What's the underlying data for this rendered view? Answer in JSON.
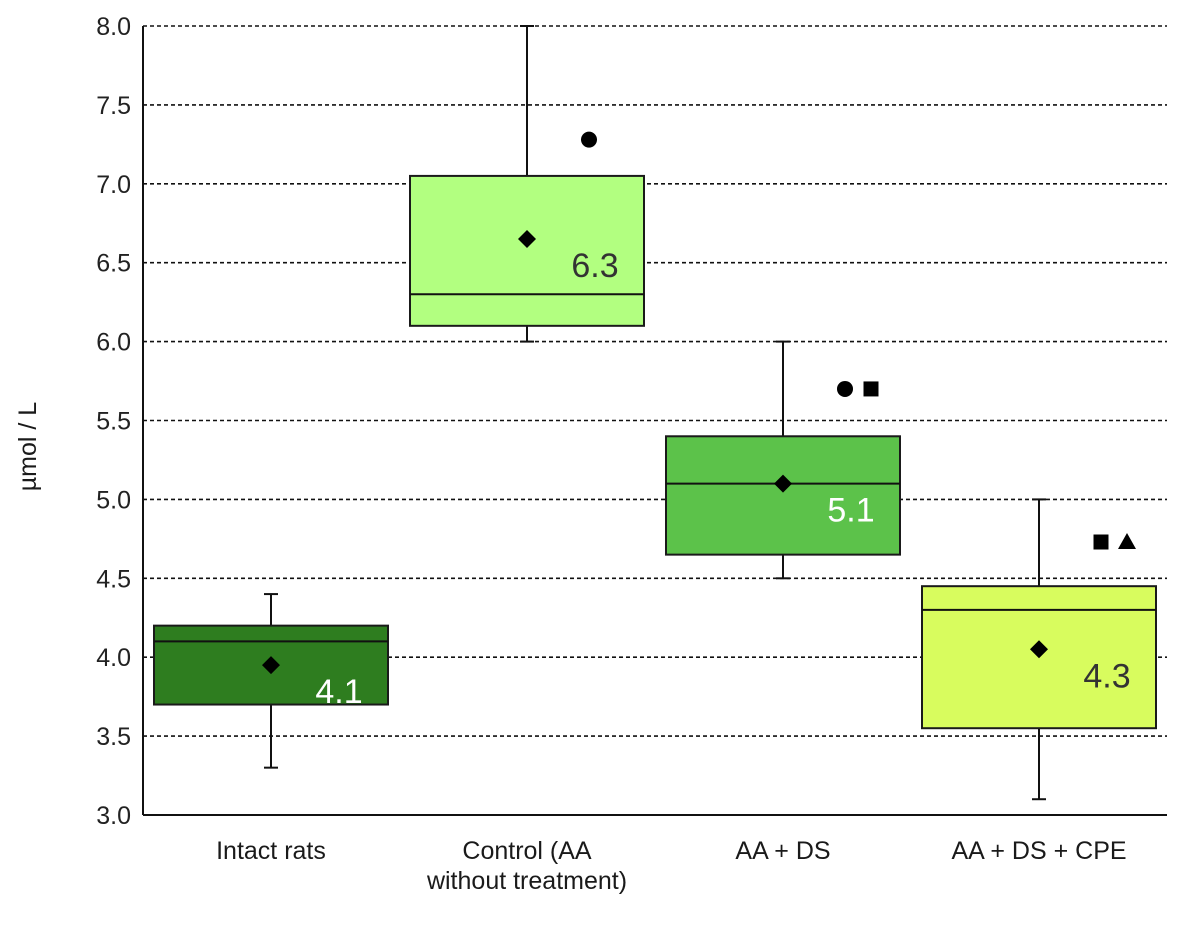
{
  "chart_data": {
    "type": "box",
    "title": "",
    "xlabel": "",
    "ylabel": "µmol / L",
    "ylim": [
      3.0,
      8.0
    ],
    "yticks": [
      "3.0",
      "3.5",
      "4.0",
      "4.5",
      "5.0",
      "5.5",
      "6.0",
      "6.5",
      "7.0",
      "7.5",
      "8.0"
    ],
    "grid": "horizontal dashed",
    "groups": [
      {
        "label_lines": [
          "Intact rats"
        ],
        "min": 3.3,
        "q1": 3.7,
        "median": 4.1,
        "q3": 4.2,
        "max": 4.4,
        "mean": 3.95,
        "median_label": "4.1",
        "color": "#2e7d1f",
        "label_color": "#ffffff",
        "markers": []
      },
      {
        "label_lines": [
          "Control (AA",
          "without treatment)"
        ],
        "min": 6.0,
        "q1": 6.1,
        "median": 6.3,
        "q3": 7.05,
        "max": 8.0,
        "mean": 6.65,
        "median_label": "6.3",
        "color": "#b2ff80",
        "label_color": "#333333",
        "markers": [
          {
            "symbol": "circle",
            "value": 7.28
          }
        ]
      },
      {
        "label_lines": [
          "AA + DS"
        ],
        "min": 4.5,
        "q1": 4.65,
        "median": 5.1,
        "q3": 5.4,
        "max": 6.0,
        "mean": 5.1,
        "median_label": "5.1",
        "color": "#5cc24a",
        "label_color": "#ffffff",
        "markers": [
          {
            "symbol": "circle",
            "value": 5.7
          },
          {
            "symbol": "square",
            "value": 5.7
          }
        ]
      },
      {
        "label_lines": [
          "AA + DS + CPE"
        ],
        "min": 3.1,
        "q1": 3.55,
        "median": 4.3,
        "q3": 4.45,
        "max": 5.0,
        "mean": 4.05,
        "median_label": "4.3",
        "color": "#d8fc5e",
        "label_color": "#333333",
        "markers": [
          {
            "symbol": "square",
            "value": 4.73
          },
          {
            "symbol": "triangle",
            "value": 4.73
          }
        ]
      }
    ],
    "legend": "none"
  }
}
